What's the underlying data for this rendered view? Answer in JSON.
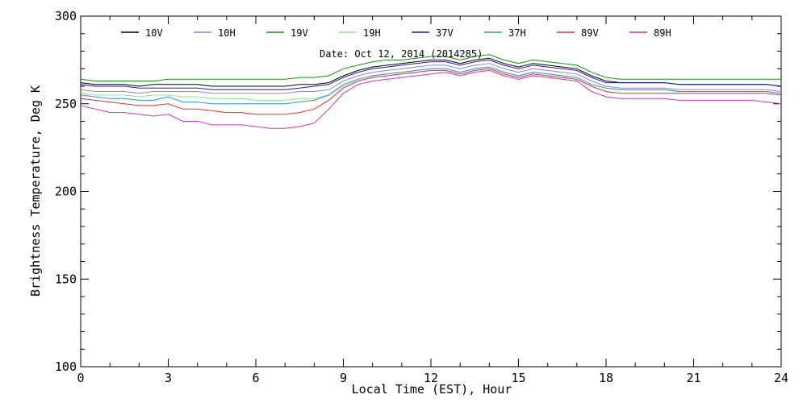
{
  "chart_data": {
    "type": "line",
    "title": "",
    "annotation": "Date: Oct 12, 2014 (2014285)",
    "xlabel": "Local Time (EST), Hour",
    "ylabel": "Brightness Temperature, Deg K",
    "xlim": [
      0,
      24
    ],
    "ylim": [
      100,
      300
    ],
    "xticks": [
      0,
      3,
      6,
      9,
      12,
      15,
      18,
      21,
      24
    ],
    "yticks": [
      100,
      150,
      200,
      250,
      300
    ],
    "x": [
      0,
      0.5,
      1,
      1.5,
      2,
      2.5,
      3,
      3.5,
      4,
      4.5,
      5,
      5.5,
      6,
      6.5,
      7,
      7.5,
      8,
      8.5,
      9,
      9.5,
      10,
      10.5,
      11,
      11.5,
      12,
      12.5,
      13,
      13.5,
      14,
      14.5,
      15,
      15.5,
      16,
      16.5,
      17,
      17.5,
      18,
      18.5,
      19,
      19.5,
      20,
      20.5,
      21,
      21.5,
      22,
      22.5,
      23,
      23.5,
      24
    ],
    "series": [
      {
        "name": "10V",
        "color": "#000000",
        "values": [
          262,
          261,
          261,
          261,
          260,
          261,
          261,
          261,
          261,
          260,
          260,
          260,
          260,
          260,
          260,
          261,
          261,
          262,
          266,
          269,
          271,
          272,
          273,
          274,
          275,
          275,
          273,
          275,
          276,
          273,
          271,
          273,
          272,
          271,
          270,
          266,
          263,
          262,
          262,
          262,
          262,
          261,
          261,
          261,
          261,
          261,
          261,
          261,
          260
        ]
      },
      {
        "name": "10H",
        "color": "#9b7fd1",
        "values": [
          258,
          257,
          257,
          257,
          256,
          257,
          257,
          257,
          257,
          256,
          256,
          256,
          256,
          256,
          256,
          257,
          257,
          258,
          263,
          266,
          268,
          269,
          270,
          271,
          272,
          272,
          270,
          272,
          273,
          270,
          268,
          270,
          269,
          268,
          267,
          263,
          260,
          259,
          259,
          259,
          259,
          258,
          258,
          258,
          258,
          258,
          258,
          258,
          257
        ]
      },
      {
        "name": "19V",
        "color": "#1a8c1a",
        "values": [
          264,
          263,
          263,
          263,
          263,
          263,
          264,
          264,
          264,
          264,
          264,
          264,
          264,
          264,
          264,
          265,
          265,
          266,
          270,
          272,
          274,
          275,
          275,
          276,
          277,
          277,
          275,
          277,
          278,
          275,
          273,
          275,
          274,
          273,
          272,
          268,
          265,
          264,
          264,
          264,
          264,
          264,
          264,
          264,
          264,
          264,
          264,
          264,
          264
        ]
      },
      {
        "name": "19H",
        "color": "#8fe08f",
        "values": [
          256,
          255,
          255,
          255,
          254,
          255,
          255,
          254,
          254,
          253,
          253,
          253,
          252,
          252,
          252,
          253,
          253,
          255,
          260,
          264,
          266,
          267,
          268,
          269,
          270,
          270,
          268,
          270,
          271,
          268,
          266,
          268,
          267,
          266,
          265,
          261,
          259,
          258,
          258,
          258,
          258,
          257,
          257,
          257,
          257,
          257,
          257,
          257,
          256
        ]
      },
      {
        "name": "37V",
        "color": "#1a1aa8",
        "values": [
          261,
          260,
          260,
          260,
          259,
          259,
          259,
          259,
          259,
          258,
          258,
          258,
          258,
          258,
          258,
          259,
          260,
          261,
          265,
          268,
          270,
          271,
          272,
          273,
          274,
          274,
          272,
          274,
          275,
          272,
          270,
          272,
          271,
          270,
          269,
          265,
          262,
          262,
          262,
          262,
          262,
          261,
          261,
          261,
          261,
          261,
          261,
          261,
          260
        ]
      },
      {
        "name": "37H",
        "color": "#2b94d6",
        "values": [
          255,
          254,
          253,
          253,
          252,
          252,
          254,
          251,
          251,
          250,
          250,
          250,
          250,
          250,
          250,
          251,
          252,
          255,
          261,
          264,
          266,
          267,
          268,
          269,
          270,
          270,
          268,
          270,
          271,
          268,
          266,
          268,
          267,
          266,
          265,
          261,
          259,
          258,
          258,
          258,
          258,
          257,
          257,
          257,
          257,
          257,
          257,
          257,
          256
        ]
      },
      {
        "name": "89V",
        "color": "#e03030",
        "values": [
          253,
          252,
          251,
          250,
          249,
          249,
          250,
          247,
          247,
          246,
          245,
          245,
          244,
          244,
          244,
          245,
          247,
          252,
          259,
          263,
          265,
          266,
          267,
          268,
          269,
          269,
          267,
          269,
          270,
          267,
          265,
          267,
          266,
          265,
          264,
          260,
          257,
          256,
          256,
          256,
          256,
          256,
          256,
          256,
          256,
          256,
          256,
          256,
          255
        ]
      },
      {
        "name": "89H",
        "color": "#cc33cc",
        "values": [
          249,
          247,
          245,
          245,
          244,
          243,
          244,
          240,
          240,
          238,
          238,
          238,
          237,
          236,
          236,
          237,
          239,
          247,
          256,
          261,
          263,
          264,
          265,
          266,
          267,
          268,
          266,
          268,
          269,
          266,
          264,
          266,
          265,
          264,
          263,
          257,
          254,
          253,
          253,
          253,
          253,
          252,
          252,
          252,
          252,
          252,
          252,
          251,
          250
        ]
      }
    ]
  }
}
